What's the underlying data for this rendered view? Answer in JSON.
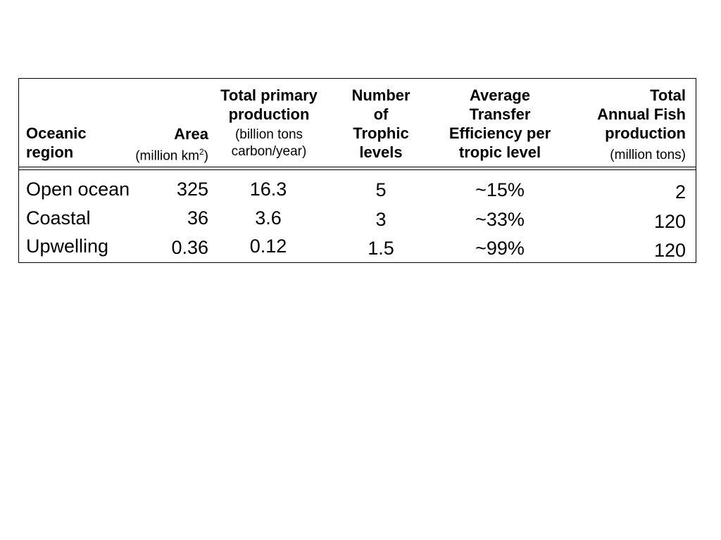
{
  "table": {
    "headers": {
      "region": {
        "line1": "Oceanic",
        "line2": "region"
      },
      "area": {
        "title": "Area",
        "unit_prefix": "(million km",
        "unit_sup": "2",
        "unit_suffix": ")"
      },
      "primary": {
        "line1": "Total primary",
        "line2": "production",
        "unit1": "(billion tons",
        "unit2": "carbon/year)"
      },
      "trophic": {
        "line1": "Number",
        "line2": "of",
        "line3": "Trophic",
        "line4": "levels"
      },
      "efficiency": {
        "line1": "Average",
        "line2": "Transfer",
        "line3": "Efficiency per",
        "line4": "tropic level"
      },
      "fish": {
        "line1": "Total",
        "line2": "Annual Fish",
        "line3": "production",
        "unit": "(million tons)"
      }
    },
    "rows": [
      {
        "region": "Open ocean",
        "area": "325",
        "primary": "16.3",
        "trophic": "5",
        "efficiency": "~15%",
        "fish": "2"
      },
      {
        "region": "Coastal",
        "area": "36",
        "primary": "3.6",
        "trophic": "3",
        "efficiency": "~33%",
        "fish": "120"
      },
      {
        "region": "Upwelling",
        "area": "0.36",
        "primary": "0.12",
        "trophic": "1.5",
        "efficiency": "~99%",
        "fish": "120"
      }
    ]
  }
}
